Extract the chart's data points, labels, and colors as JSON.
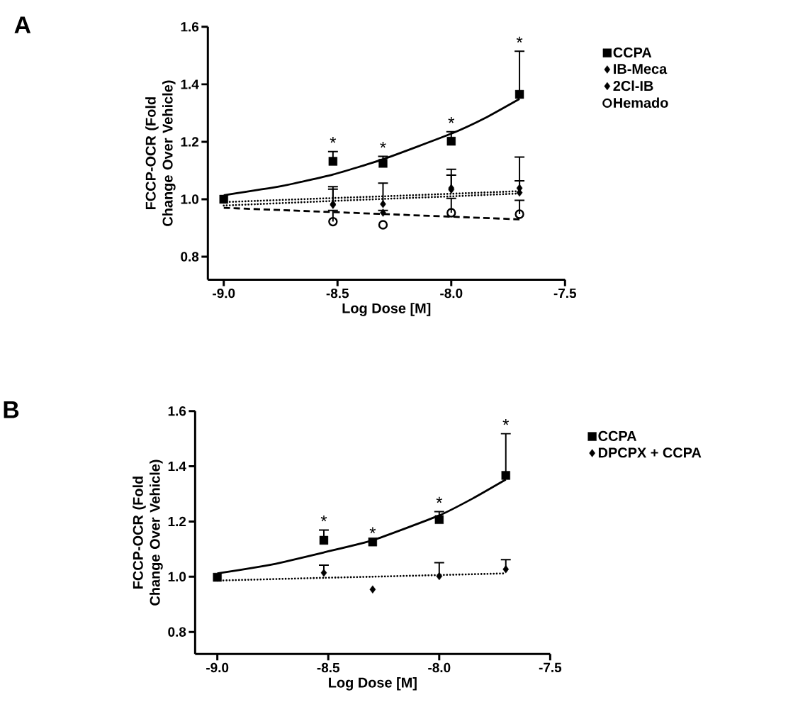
{
  "chart_data": [
    {
      "type": "scatter",
      "xlabel": "Log Dose [M]",
      "ylabel": "FCCP-OCR (Fold Change Over Vehicle)",
      "legend": "right",
      "xlim": [
        -9.07,
        -7.5
      ],
      "ylim": [
        0.72,
        1.6
      ],
      "xticks": [
        {
          "value": -9,
          "label": "-9.0"
        },
        {
          "value": -8.5,
          "label": "-8.5"
        },
        {
          "value": -8,
          "label": "-8.0"
        },
        {
          "value": -7.5,
          "label": "-7.5"
        }
      ],
      "yticks": [
        {
          "value": 0.8,
          "label": "0.8"
        },
        {
          "value": 1.0,
          "label": "1.0"
        },
        {
          "value": 1.2,
          "label": "1.2"
        },
        {
          "value": 1.4,
          "label": "1.4"
        },
        {
          "value": 1.6,
          "label": "1.6"
        }
      ],
      "x": [
        -9,
        -8.52,
        -8.3,
        -8.0,
        -7.7
      ],
      "series": [
        {
          "name": "CCPA",
          "color": "#000000",
          "marker": "square",
          "values": [
            1.0,
            1.132,
            1.125,
            1.202,
            1.365
          ],
          "errors": [
            null,
            [
              1.132,
              1.166
            ],
            [
              1.125,
              1.149
            ],
            [
              1.202,
              1.235
            ],
            [
              1.365,
              1.515
            ]
          ]
        },
        {
          "name": "IB-Meca",
          "color": "#000000",
          "marker": "diamond",
          "values": [
            null,
            0.983,
            0.983,
            1.039,
            1.039
          ],
          "errors": [
            null,
            [
              0.983,
              1.044
            ],
            [
              0.983,
              1.056
            ],
            [
              1.039,
              1.104
            ],
            [
              1.039,
              1.147
            ]
          ]
        },
        {
          "name": "2Cl-IB",
          "color": "#000000",
          "marker": "diamond",
          "values": [
            null,
            0.98,
            0.953,
            1.033,
            1.023
          ],
          "errors": [
            null,
            [
              0.98,
              1.035
            ],
            [
              0.953,
              0.961
            ],
            [
              1.033,
              1.084
            ],
            [
              1.023,
              1.064
            ]
          ]
        },
        {
          "name": "Hemado",
          "color": "#000000",
          "marker": "circle",
          "values": [
            null,
            0.922,
            0.911,
            0.953,
            0.948
          ],
          "errors": [
            null,
            [
              0.922,
              0.961
            ],
            null,
            [
              0.953,
              1.003
            ],
            [
              0.948,
              0.996
            ]
          ]
        },
        {
          "type": "line",
          "color": "#000000",
          "line_style": "solid",
          "x": [
            -9,
            -8.75,
            -8.52,
            -8.3,
            -8.0,
            -7.85,
            -7.7
          ],
          "values": [
            1.014,
            1.045,
            1.086,
            1.139,
            1.228,
            1.283,
            1.349
          ]
        },
        {
          "type": "line",
          "color": "#000000",
          "line_style": "dotted",
          "x": [
            -9,
            -8.52,
            -8.3,
            -8.0,
            -7.7
          ],
          "values": [
            0.99,
            1.004,
            1.01,
            1.019,
            1.028
          ]
        },
        {
          "type": "line",
          "color": "#000000",
          "line_style": "dotted",
          "x": [
            -9,
            -8.52,
            -8.3,
            -8.0,
            -7.7
          ],
          "values": [
            0.978,
            0.994,
            1.001,
            1.01,
            1.02
          ]
        },
        {
          "type": "line",
          "color": "#000000",
          "line_style": "dashed",
          "x": [
            -9,
            -7.7
          ],
          "values": [
            0.97,
            0.93
          ]
        }
      ],
      "annotations": [
        "A",
        {
          "text": "*",
          "x": -8.52,
          "y": 1.166
        },
        {
          "text": "*",
          "x": -8.3,
          "y": 1.149
        },
        {
          "text": "*",
          "x": -8.0,
          "y": 1.235
        },
        {
          "text": "*",
          "x": -7.7,
          "y": 1.515
        }
      ]
    },
    {
      "type": "scatter",
      "xlabel": "Log Dose [M]",
      "ylabel": "FCCP-OCR (Fold Change Over Vehicle)",
      "legend": "right",
      "xlim": [
        -9.1,
        -7.5
      ],
      "ylim": [
        0.72,
        1.6
      ],
      "xticks": [
        {
          "value": -9,
          "label": "-9.0"
        },
        {
          "value": -8.5,
          "label": "-8.5"
        },
        {
          "value": -8,
          "label": "-8.0"
        },
        {
          "value": -7.5,
          "label": "-7.5"
        }
      ],
      "yticks": [
        {
          "value": 0.8,
          "label": "0.8"
        },
        {
          "value": 1.0,
          "label": "1.0"
        },
        {
          "value": 1.2,
          "label": "1.2"
        },
        {
          "value": 1.4,
          "label": "1.4"
        },
        {
          "value": 1.6,
          "label": "1.6"
        }
      ],
      "x": [
        -9,
        -8.52,
        -8.3,
        -8.0,
        -7.7
      ],
      "series": [
        {
          "name": "CCPA",
          "color": "#000000",
          "marker": "square",
          "values": [
            0.998,
            1.132,
            1.126,
            1.207,
            1.367
          ],
          "errors": [
            null,
            [
              1.132,
              1.169
            ],
            null,
            [
              1.207,
              1.236
            ],
            [
              1.367,
              1.518
            ]
          ]
        },
        {
          "name": "DPCPX + CCPA",
          "color": "#000000",
          "marker": "diamond",
          "values": [
            null,
            1.014,
            0.954,
            1.002,
            1.027
          ],
          "errors": [
            null,
            [
              1.014,
              1.042
            ],
            null,
            [
              1.002,
              1.051
            ],
            [
              1.027,
              1.062
            ]
          ]
        },
        {
          "type": "line",
          "color": "#000000",
          "line_style": "solid",
          "x": [
            -9,
            -8.75,
            -8.52,
            -8.3,
            -8.0,
            -7.85,
            -7.7
          ],
          "values": [
            1.012,
            1.045,
            1.088,
            1.132,
            1.222,
            1.283,
            1.352
          ]
        },
        {
          "type": "line",
          "color": "#000000",
          "line_style": "dotted",
          "x": [
            -9,
            -8.52,
            -8.3,
            -8.0,
            -7.7
          ],
          "values": [
            0.986,
            0.996,
            1.0,
            1.006,
            1.012
          ]
        }
      ],
      "annotations": [
        "B",
        {
          "text": "*",
          "x": -8.52,
          "y": 1.169
        },
        {
          "text": "*",
          "x": -8.3,
          "y": 1.126
        },
        {
          "text": "*",
          "x": -8.0,
          "y": 1.236
        },
        {
          "text": "*",
          "x": -7.7,
          "y": 1.518
        }
      ]
    }
  ]
}
